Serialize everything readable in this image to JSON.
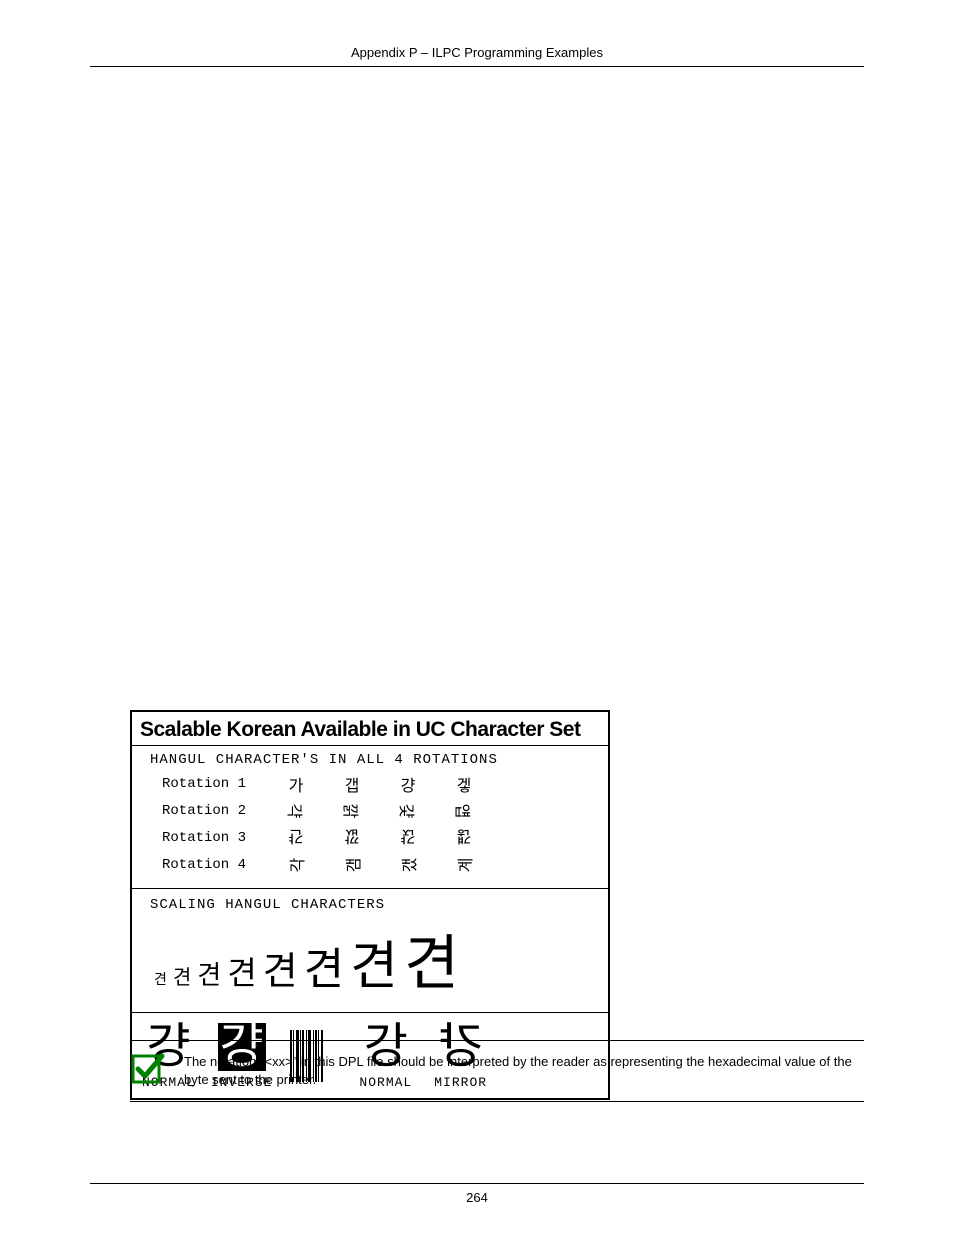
{
  "header": {
    "title": "Appendix P – ILPC Programming Examples"
  },
  "example_box": {
    "title": "Scalable Korean Available in UC Character Set",
    "rotation_header": "HANGUL CHARACTER'S IN ALL 4 ROTATIONS",
    "rotations": [
      {
        "label": "Rotation 1",
        "chars": [
          "가",
          "갭",
          "걍",
          "겧"
        ]
      },
      {
        "label": "Rotation 2",
        "chars": [
          "갹",
          "깕",
          "걏",
          "얩"
        ]
      },
      {
        "label": "Rotation 3",
        "chars": [
          "갼",
          "깞",
          "갽",
          "걚"
        ]
      },
      {
        "label": "Rotation 4",
        "chars": [
          "각",
          "갬",
          "갰",
          "계"
        ]
      }
    ],
    "scaling_header": "SCALING HANGUL CHARACTERS",
    "scaling_char": "견",
    "scaling_sizes": [
      14,
      20,
      26,
      32,
      38,
      44,
      52,
      60
    ],
    "bottom_chars": {
      "normal1": {
        "char": "걍",
        "label": "NORMAL"
      },
      "inverse": {
        "char": "걍",
        "label": "INVERSE"
      },
      "normal2": {
        "char": "강",
        "label": "NORMAL"
      },
      "mirror": {
        "char": "걍",
        "label": "MIRROR"
      }
    }
  },
  "note": {
    "text": "The notation \"<xx>\" in this DPL file should be interpreted by the reader as representing the hexadecimal value of the byte sent to the printer."
  },
  "footer": {
    "page_number": "264"
  },
  "colors": {
    "text": "#000000",
    "background": "#ffffff",
    "checkmark": "#008000"
  }
}
